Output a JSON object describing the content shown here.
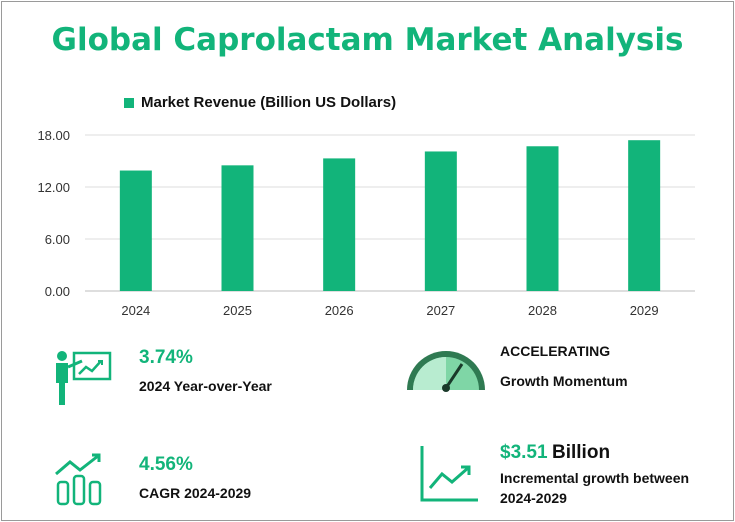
{
  "title": "Global Caprolactam Market Analysis",
  "colors": {
    "accent": "#12b47a",
    "gauge_dark": "#2f7a52",
    "text": "#111111"
  },
  "chart_data": {
    "type": "bar",
    "categories": [
      "2024",
      "2025",
      "2026",
      "2027",
      "2028",
      "2029"
    ],
    "series": [
      {
        "name": "Market Revenue (Billion US Dollars)",
        "values": [
          13.9,
          14.5,
          15.3,
          16.1,
          16.7,
          17.4
        ]
      }
    ],
    "yticks": [
      "0.00",
      "6.00",
      "12.00",
      "18.00"
    ],
    "ylim": [
      0,
      18
    ],
    "grid": true,
    "legend_position": "top-left"
  },
  "kpis": {
    "yoy": {
      "value": "3.74%",
      "label": "2024 Year-over-Year",
      "icon": "presentation-chart-icon"
    },
    "momentum": {
      "value": "ACCELERATING",
      "label": "Growth Momentum",
      "icon": "gauge-icon"
    },
    "cagr": {
      "value": "4.56%",
      "label": "CAGR 2024-2029",
      "icon": "growth-bars-icon"
    },
    "incremental": {
      "value": "$3.51",
      "unit": "Billion",
      "label_line1": "Incremental growth between",
      "label_line2": "2024-2029",
      "icon": "line-chart-icon"
    }
  }
}
